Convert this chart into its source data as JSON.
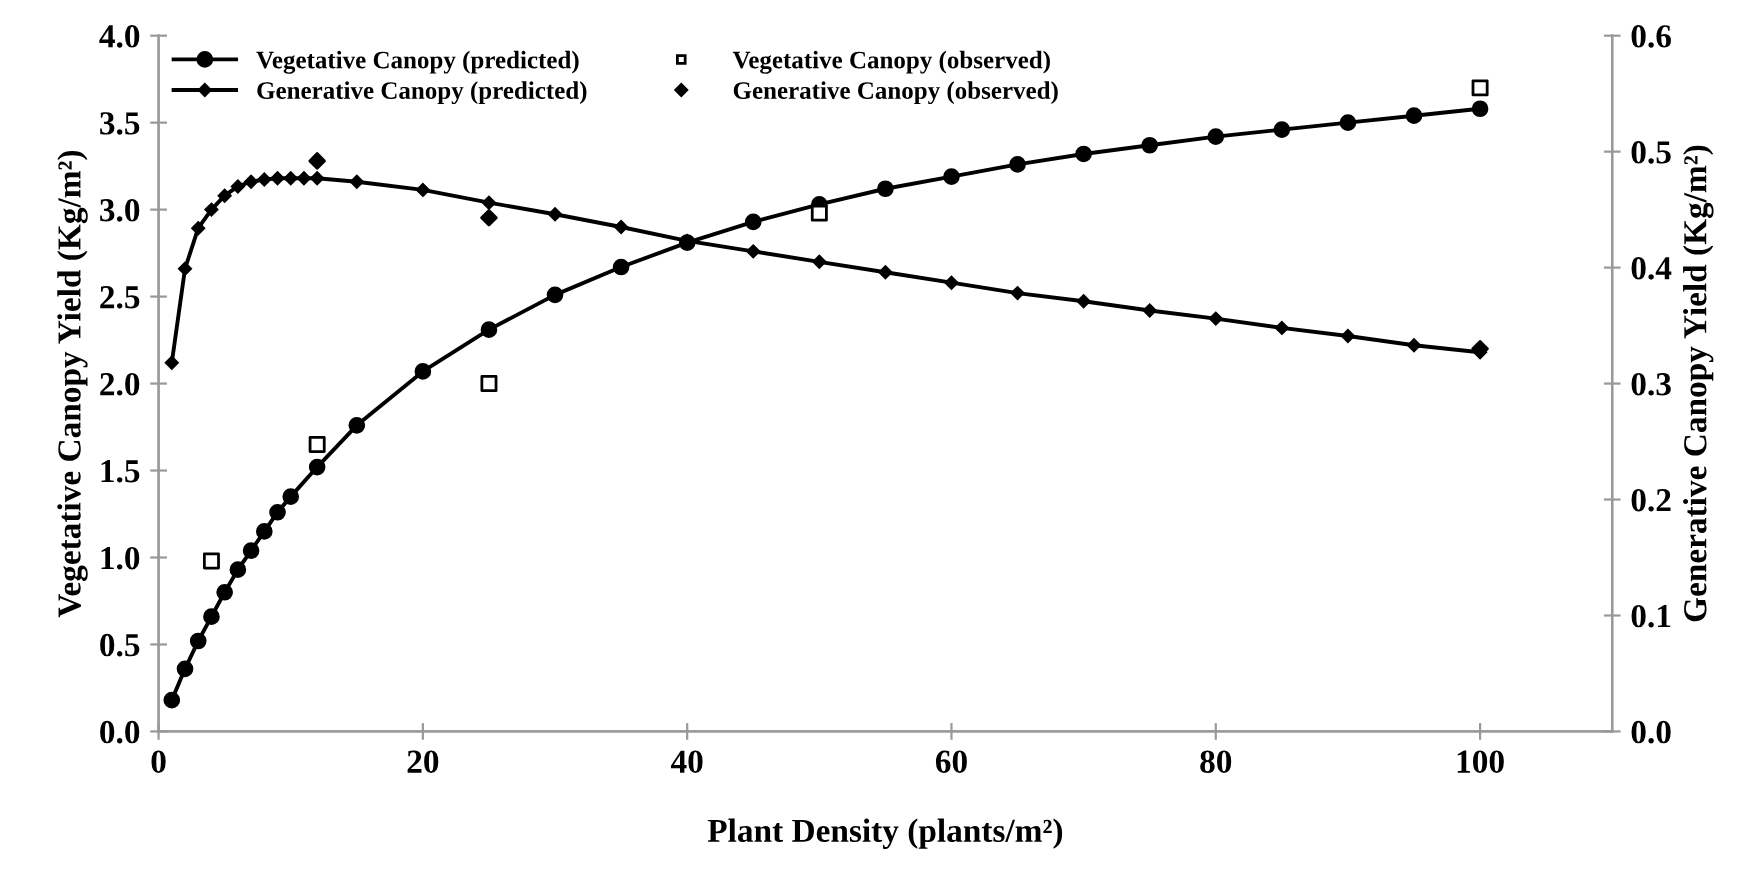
{
  "chart_data": {
    "type": "line",
    "xlabel": "Plant Density (plants/m²)",
    "ylabel": "Vegetative Canopy Yield (Kg/m²)",
    "y2label": "Generative Canopy Yield (Kg/m²)",
    "xlim": [
      0,
      110
    ],
    "xticks": [
      0,
      20,
      40,
      60,
      80,
      100
    ],
    "ylim": [
      0,
      4
    ],
    "yticks": [
      {
        "value": 0,
        "label": "0.0"
      },
      {
        "value": 0.5,
        "label": "0.5"
      },
      {
        "value": 1,
        "label": "1.0"
      },
      {
        "value": 1.5,
        "label": "1.5"
      },
      {
        "value": 2,
        "label": "2.0"
      },
      {
        "value": 2.5,
        "label": "2.5"
      },
      {
        "value": 3,
        "label": "3.0"
      },
      {
        "value": 3.5,
        "label": "3.5"
      },
      {
        "value": 4,
        "label": "4.0"
      }
    ],
    "y2lim": [
      0,
      0.6
    ],
    "y2ticks": [
      {
        "value": 0,
        "label": "0.0"
      },
      0.1,
      0.2,
      0.3,
      0.4,
      0.5,
      0.6
    ],
    "grid": false,
    "legend": "top left",
    "series": [
      {
        "name": "Vegetative Canopy (predicted)",
        "marker": "circle",
        "color": "#000000",
        "x": [
          1,
          2,
          3,
          4,
          5,
          6,
          7,
          8,
          9,
          10,
          12,
          15,
          20,
          25,
          30,
          35,
          40,
          45,
          50,
          55,
          60,
          65,
          70,
          75,
          80,
          85,
          90,
          95,
          100
        ],
        "values": [
          0.18,
          0.36,
          0.52,
          0.66,
          0.8,
          0.93,
          1.04,
          1.15,
          1.26,
          1.35,
          1.52,
          1.76,
          2.07,
          2.31,
          2.51,
          2.67,
          2.81,
          2.93,
          3.03,
          3.12,
          3.19,
          3.26,
          3.32,
          3.37,
          3.42,
          3.46,
          3.5,
          3.54,
          3.58
        ]
      },
      {
        "name": "Generative Canopy (predicted)",
        "marker": "diamond",
        "axis": "y2",
        "color": "#000000",
        "x": [
          1,
          2,
          3,
          4,
          5,
          6,
          7,
          8,
          9,
          10,
          11,
          12,
          15,
          20,
          25,
          30,
          35,
          40,
          45,
          50,
          55,
          60,
          65,
          70,
          75,
          80,
          85,
          90,
          95,
          100
        ],
        "values": [
          0.318,
          0.399,
          0.434,
          0.45,
          0.462,
          0.47,
          0.474,
          0.476,
          0.477,
          0.477,
          0.477,
          0.477,
          0.474,
          0.467,
          0.456,
          0.446,
          0.435,
          0.423,
          0.414,
          0.405,
          0.396,
          0.387,
          0.378,
          0.371,
          0.363,
          0.356,
          0.348,
          0.341,
          0.333,
          0.327
        ]
      },
      {
        "name": "Vegetative Canopy (observed)",
        "type": "scatter",
        "marker": "square",
        "color": "#000000",
        "x": [
          4,
          12,
          25,
          50,
          100
        ],
        "values": [
          0.98,
          1.65,
          2.0,
          2.98,
          3.7
        ]
      },
      {
        "name": "Generative Canopy (observed)",
        "type": "scatter",
        "marker": "diamond",
        "axis": "y2",
        "color": "#000000",
        "x": [
          12,
          25,
          100
        ],
        "values": [
          0.492,
          0.443,
          0.33
        ]
      }
    ]
  }
}
